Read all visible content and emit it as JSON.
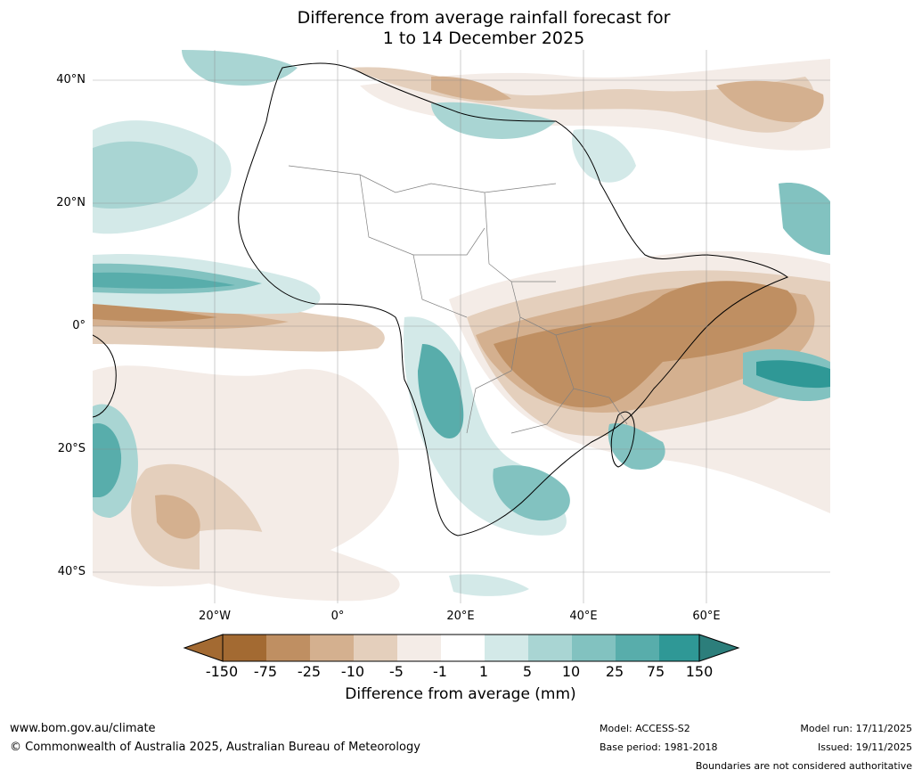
{
  "title": {
    "line1": "Difference from average rainfall forecast for",
    "line2": "1 to 14 December 2025"
  },
  "axes": {
    "lat_labels": [
      "40°N",
      "20°N",
      "0°",
      "20°S",
      "40°S"
    ],
    "lon_labels": [
      "20°W",
      "0°",
      "20°E",
      "40°E",
      "60°E"
    ]
  },
  "colorbar": {
    "labels": [
      "-150",
      "-75",
      "-25",
      "-10",
      "-5",
      "-1",
      "1",
      "5",
      "10",
      "25",
      "75",
      "150"
    ],
    "colors": [
      "#a36a32",
      "#bf8f62",
      "#d4b08f",
      "#e4cfbc",
      "#f4ece7",
      "#ffffff",
      "#d3e9e8",
      "#a9d5d3",
      "#82c2c0",
      "#58adab",
      "#2f9896",
      "#2c7e7b"
    ],
    "title": "Difference from average (mm)"
  },
  "footer": {
    "url": "www.bom.gov.au/climate",
    "copyright": "© Commonwealth of Australia 2025, Australian Bureau of Meteorology",
    "model": "Model: ACCESS-S2",
    "base_period": "Base period: 1981-2018",
    "model_run": "Model run: 17/11/2025",
    "issued": "Issued: 19/11/2025",
    "disclaimer": "Boundaries are not considered authoritative"
  }
}
